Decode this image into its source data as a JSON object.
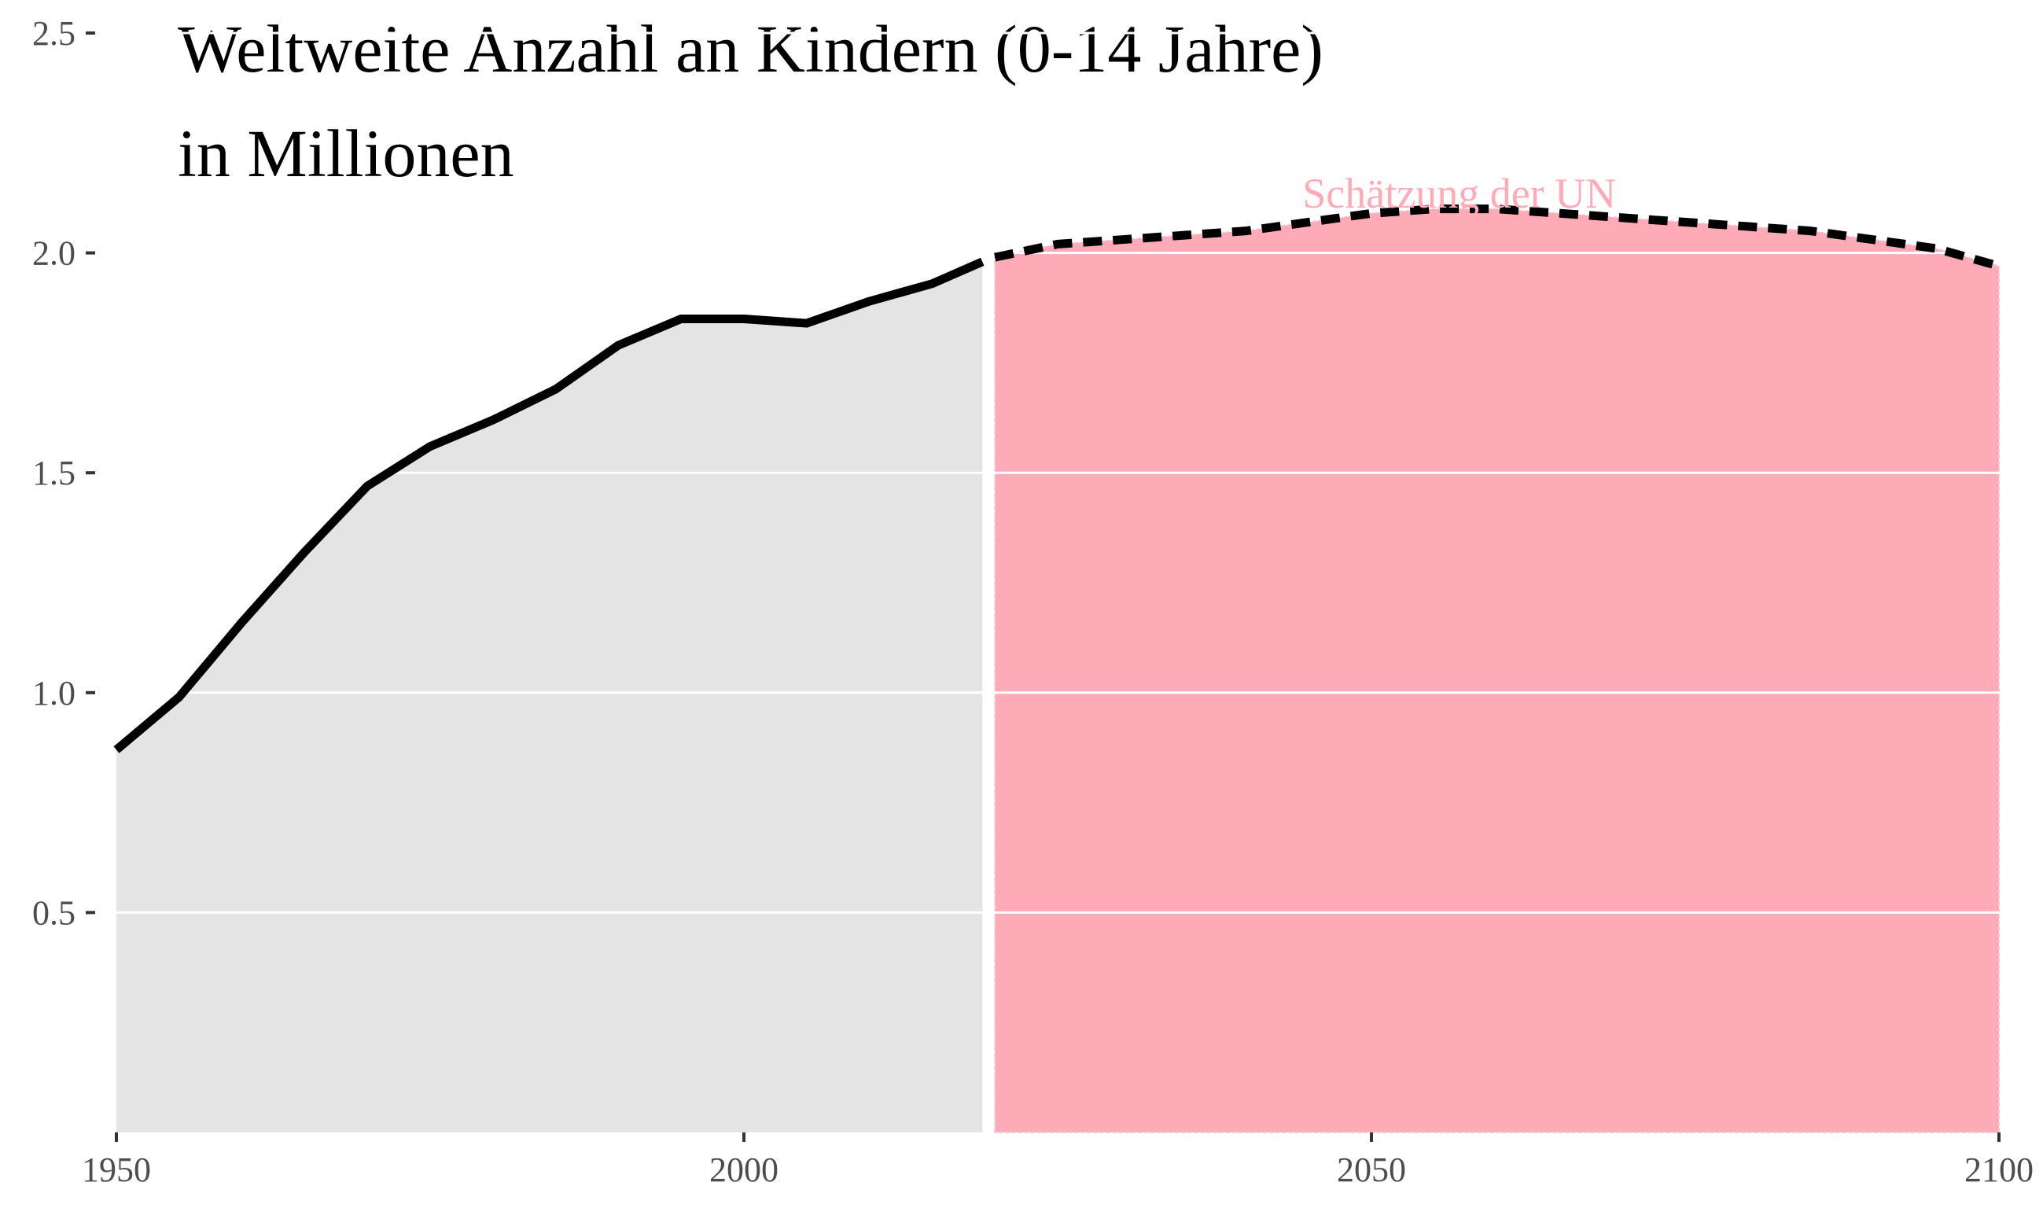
{
  "chart_data": {
    "type": "area",
    "title": [
      "Weltweite Anzahl an Kindern (0-14 Jahre)",
      "in Millionen"
    ],
    "xlabel": "",
    "ylabel": "",
    "xlim": [
      1950,
      2100
    ],
    "ylim": [
      0,
      2.5
    ],
    "x_ticks": [
      "1950",
      "2000",
      "2050",
      "2100"
    ],
    "y_ticks": [
      "0.5",
      "1.0",
      "1.5",
      "2.0",
      "2.5"
    ],
    "grid": "horizontal",
    "colors": {
      "historical_fill": "#e4e4e4",
      "projection_fill": "#ffaab7",
      "projection_label": "#ffaab7",
      "line": "#000000",
      "grid": "#ffffff",
      "axis_text": "#4d4d4d"
    },
    "series": [
      {
        "line": "solid",
        "x": [
          1950,
          1955,
          1960,
          1965,
          1970,
          1975,
          1980,
          1985,
          1990,
          1995,
          2000,
          2005,
          2010,
          2015,
          2019
        ],
        "y": [
          0.87,
          0.99,
          1.16,
          1.32,
          1.47,
          1.56,
          1.62,
          1.69,
          1.79,
          1.85,
          1.85,
          1.84,
          1.89,
          1.93,
          1.98
        ]
      },
      {
        "line": "dashed",
        "label": "Schätzung der UN",
        "x": [
          2020,
          2025,
          2030,
          2035,
          2040,
          2045,
          2050,
          2055,
          2060,
          2065,
          2070,
          2075,
          2080,
          2085,
          2090,
          2095,
          2100
        ],
        "y": [
          1.99,
          2.02,
          2.03,
          2.04,
          2.05,
          2.07,
          2.09,
          2.1,
          2.1,
          2.09,
          2.08,
          2.07,
          2.06,
          2.05,
          2.03,
          2.01,
          1.97
        ]
      }
    ]
  }
}
